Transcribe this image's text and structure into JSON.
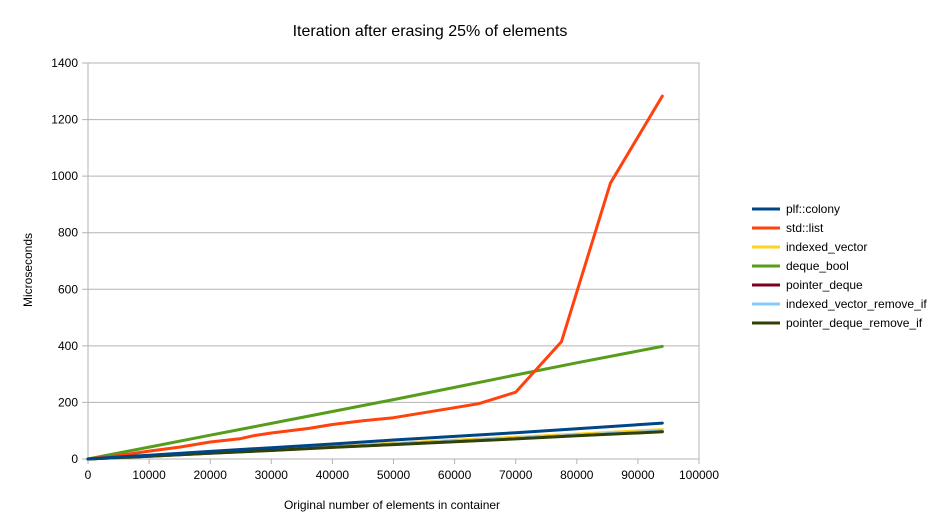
{
  "chart_data": {
    "type": "line",
    "title": "Iteration after erasing 25% of elements",
    "xlabel": "Original number of elements in container",
    "ylabel": "Microseconds",
    "xlim": [
      0,
      100000
    ],
    "ylim": [
      0,
      1400
    ],
    "xticks": [
      0,
      10000,
      20000,
      30000,
      40000,
      50000,
      60000,
      70000,
      80000,
      90000,
      100000
    ],
    "yticks": [
      0,
      200,
      400,
      600,
      800,
      1000,
      1200,
      1400
    ],
    "grid": "horizontal",
    "legend_position": "right",
    "series": [
      {
        "name": "plf::colony",
        "color": "#004586",
        "x": [
          0,
          5000,
          10000,
          20000,
          30000,
          40000,
          50000,
          60000,
          70000,
          80000,
          94000
        ],
        "y": [
          0,
          7,
          13,
          27,
          40,
          53,
          67,
          80,
          93,
          107,
          127
        ]
      },
      {
        "name": "std::list",
        "color": "#ff420e",
        "x": [
          0,
          5000,
          10000,
          15000,
          20000,
          25000,
          27000,
          30000,
          36000,
          40000,
          45000,
          50000,
          54000,
          59000,
          64000,
          70000,
          77500,
          85500,
          94000
        ],
        "y": [
          0,
          12,
          28,
          42,
          60,
          72,
          82,
          92,
          108,
          122,
          135,
          146,
          160,
          178,
          196,
          236,
          415,
          975,
          1283
        ]
      },
      {
        "name": "indexed_vector",
        "color": "#ffd320",
        "x": [
          0,
          10000,
          20000,
          30000,
          40000,
          50000,
          60000,
          70000,
          80000,
          94000
        ],
        "y": [
          0,
          11,
          22,
          33,
          44,
          55,
          66,
          77,
          88,
          104
        ]
      },
      {
        "name": "deque_bool",
        "color": "#579d1c",
        "x": [
          0,
          10000,
          20000,
          30000,
          40000,
          50000,
          60000,
          70000,
          80000,
          94000
        ],
        "y": [
          0,
          42,
          84,
          126,
          168,
          210,
          253,
          297,
          340,
          398
        ]
      },
      {
        "name": "pointer_deque",
        "color": "#7e0021",
        "x": [
          0,
          10000,
          20000,
          30000,
          40000,
          50000,
          60000,
          70000,
          80000,
          94000
        ],
        "y": [
          0,
          10,
          21,
          31,
          42,
          52,
          63,
          73,
          84,
          98
        ]
      },
      {
        "name": "indexed_vector_remove_if",
        "color": "#83caff",
        "x": [
          0,
          10000,
          20000,
          30000,
          40000,
          50000,
          60000,
          70000,
          80000,
          94000
        ],
        "y": [
          0,
          10,
          21,
          31,
          42,
          52,
          63,
          73,
          84,
          99
        ]
      },
      {
        "name": "pointer_deque_remove_if",
        "color": "#314004",
        "x": [
          0,
          10000,
          20000,
          30000,
          40000,
          50000,
          60000,
          70000,
          80000,
          94000
        ],
        "y": [
          0,
          10,
          20,
          30,
          41,
          51,
          61,
          71,
          82,
          96
        ]
      }
    ]
  }
}
